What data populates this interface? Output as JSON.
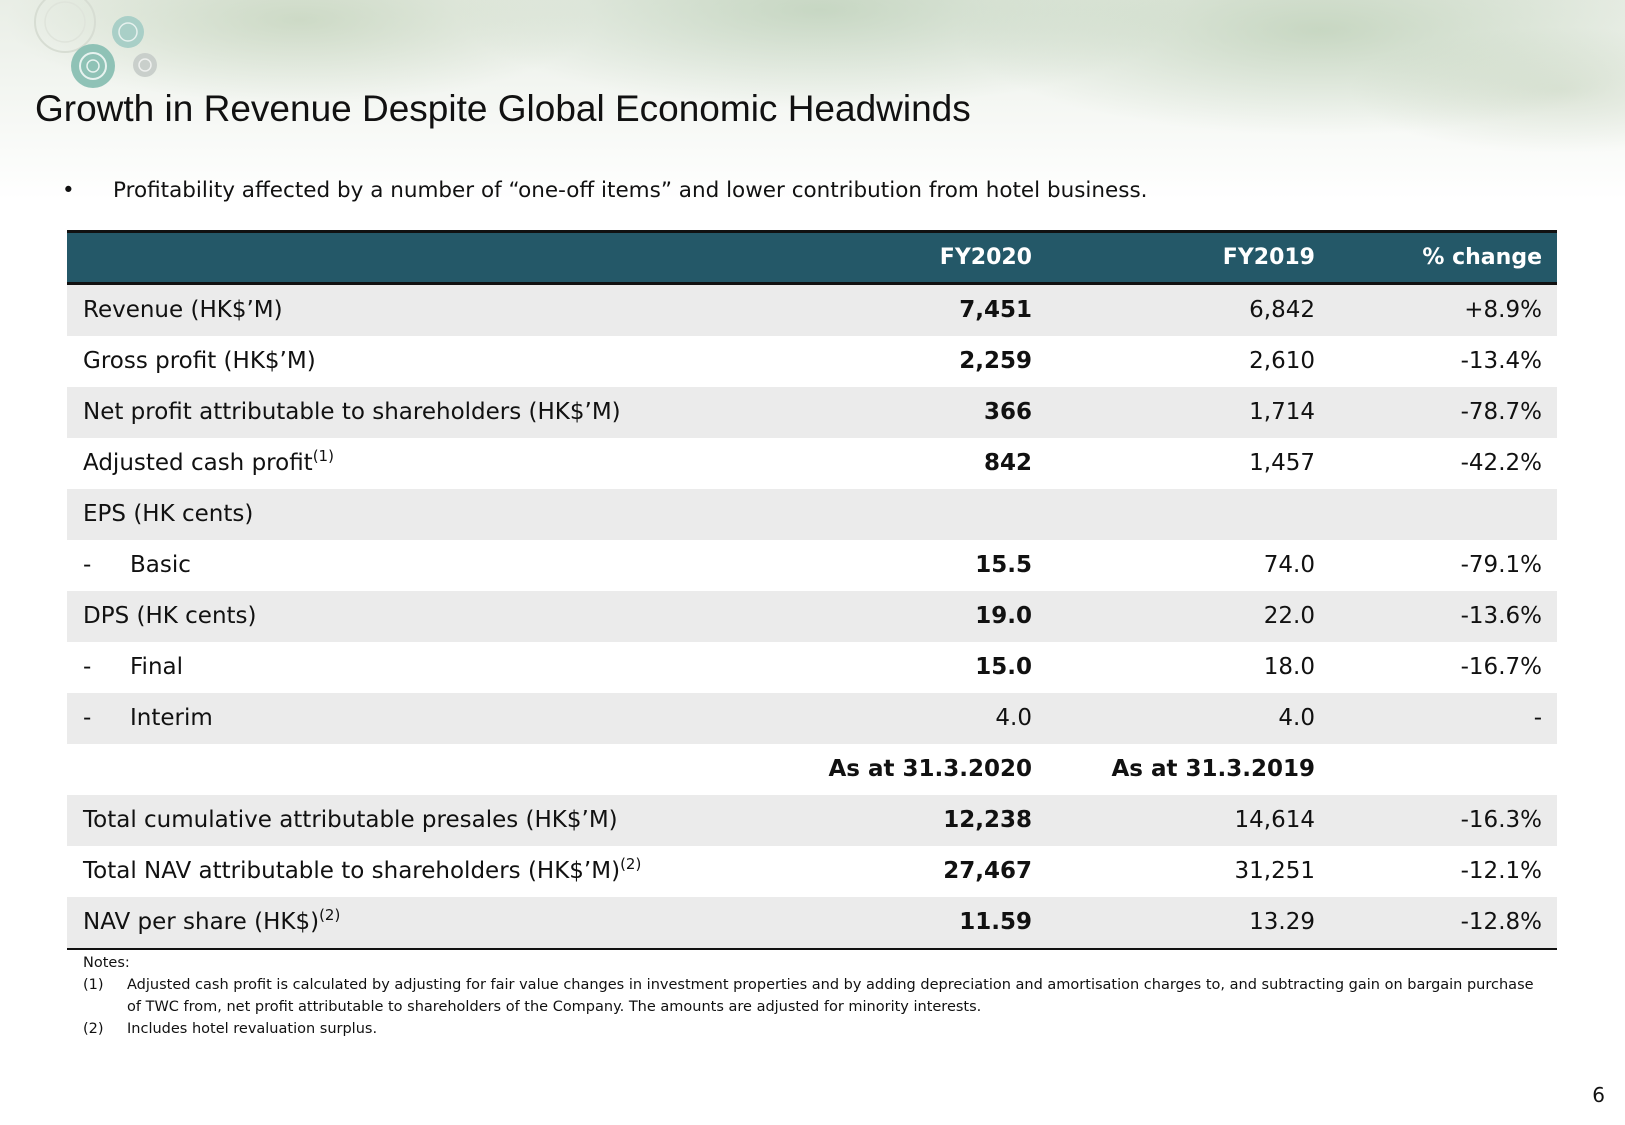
{
  "title": "Growth in Revenue Despite Global Economic Headwinds",
  "bullet": {
    "symbol": "•",
    "text": "Profitability affected by a number of “one-off items” and lower contribution from hotel business."
  },
  "table": {
    "headers": {
      "label": "",
      "fy2020": "FY2020",
      "fy2019": "FY2019",
      "change": "% change"
    },
    "header_color": "#245868",
    "rows": [
      {
        "label": "Revenue (HK$’M)",
        "fy2020": "7,451",
        "fy2019": "6,842",
        "change": "+8.9%"
      },
      {
        "label": "Gross profit (HK$’M)",
        "fy2020": "2,259",
        "fy2019": "2,610",
        "change": "-13.4%"
      },
      {
        "label": "Net profit attributable to shareholders (HK$’M)",
        "fy2020": "366",
        "fy2019": "1,714",
        "change": "-78.7%"
      },
      {
        "label": "Adjusted cash profit",
        "note_ref": "(1)",
        "fy2020": "842",
        "fy2019": "1,457",
        "change": "-42.2%"
      },
      {
        "label": "EPS (HK cents)",
        "fy2020": "",
        "fy2019": "",
        "change": ""
      },
      {
        "dash": "-",
        "label": "Basic",
        "fy2020": "15.5",
        "fy2019": "74.0",
        "change": "-79.1%"
      },
      {
        "label": "DPS (HK cents)",
        "fy2020": "19.0",
        "fy2019": "22.0",
        "change": "-13.6%"
      },
      {
        "dash": "-",
        "label": "Final",
        "fy2020": "15.0",
        "fy2019": "18.0",
        "change": "-16.7%"
      },
      {
        "dash": "-",
        "label": "Interim",
        "fy2020": "4.0",
        "fy2019": "4.0",
        "change": "-"
      }
    ],
    "as_at": {
      "fy2020": "As at 31.3.2020",
      "fy2019": "As at 31.3.2019"
    },
    "rows_as_at": [
      {
        "label": "Total cumulative attributable presales (HK$’M)",
        "fy2020": "12,238",
        "fy2019": "14,614",
        "change": "-16.3%"
      },
      {
        "label": "Total NAV attributable to shareholders (HK$’M)",
        "note_ref": "(2)",
        "fy2020": "27,467",
        "fy2019": "31,251",
        "change": "-12.1%"
      },
      {
        "label": "NAV per share (HK$)",
        "note_ref": "(2)",
        "fy2020": "11.59",
        "fy2019": "13.29",
        "change": "-12.8%"
      }
    ]
  },
  "notes": {
    "heading": "Notes:",
    "items": [
      {
        "num": "(1)",
        "text": "Adjusted cash profit is calculated by adjusting for fair value changes in investment properties and by adding depreciation and amortisation charges to, and subtracting gain on bargain purchase of TWC from, net profit attributable to shareholders of the Company. The amounts are adjusted for minority interests."
      },
      {
        "num": "(2)",
        "text": "Includes hotel revaluation surplus."
      }
    ]
  },
  "page_number": "6"
}
